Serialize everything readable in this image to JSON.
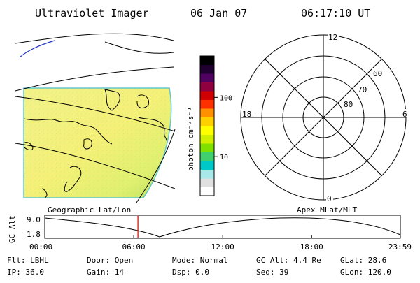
{
  "header": {
    "title": "Ultraviolet Imager",
    "date": "06 Jan 07",
    "time": "06:17:10 UT"
  },
  "colorbar": {
    "unit_label": "photon cm⁻²s⁻¹",
    "ticks": [
      {
        "value": 100,
        "label": "100"
      },
      {
        "value": 10,
        "label": "10"
      }
    ],
    "colors": [
      "#ffffff",
      "#e0e0e0",
      "#a8e8e8",
      "#00c8c8",
      "#40d070",
      "#80e000",
      "#d0f000",
      "#ffff00",
      "#ffd000",
      "#ff9000",
      "#ff3000",
      "#d00000",
      "#900040",
      "#500060",
      "#200030",
      "#000000"
    ]
  },
  "panels": {
    "left_label": "Geographic Lat/Lon",
    "right_label": "Apex MLat/MLT"
  },
  "polar_plot": {
    "mlt_labels": [
      "12",
      "18",
      "6",
      "0"
    ],
    "mlat_labels": [
      "60",
      "70",
      "80"
    ]
  },
  "timeline": {
    "ylabel": "GC Alt",
    "yticks": [
      "9.0",
      "1.8"
    ],
    "xticks": [
      "00:00",
      "06:00",
      "12:00",
      "18:00",
      "23:59"
    ],
    "marker_time": "06:17",
    "line_color": "#000000",
    "marker_color": "#cc0000"
  },
  "info": {
    "flt": "Flt: LBHL",
    "ip": "IP: 36.0",
    "door": "Door: Open",
    "gain": "Gain: 14",
    "mode": "Mode: Normal",
    "dsp": "Dsp:     0.0",
    "gc_alt": "GC Alt: 4.4 Re",
    "seq": "Seq: 39",
    "glat": "GLat:  28.6",
    "glon": "GLon: 120.0"
  }
}
